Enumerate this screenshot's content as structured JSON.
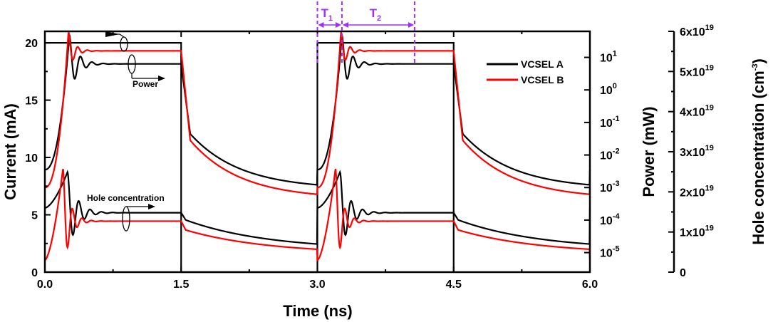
{
  "chart_data": {
    "type": "line",
    "x_axis": {
      "label": "Time (ns)",
      "range": [
        0,
        6
      ],
      "ticks": [
        "0.0",
        "1.5",
        "3.0",
        "4.5",
        "6.0"
      ]
    },
    "left_axis": {
      "label": "Current (mA)",
      "range": [
        0,
        21
      ],
      "ticks": [
        "0",
        "5",
        "10",
        "15",
        "20"
      ]
    },
    "right_axis_power": {
      "label": "Power (mW)",
      "scale": "log",
      "range_log10": [
        -5.6,
        1.8
      ],
      "ticks": [
        {
          "base": "10",
          "exp": "1"
        },
        {
          "base": "10",
          "exp": "0"
        },
        {
          "base": "10",
          "exp": "-1"
        },
        {
          "base": "10",
          "exp": "-2"
        },
        {
          "base": "10",
          "exp": "-3"
        },
        {
          "base": "10",
          "exp": "-4"
        },
        {
          "base": "10",
          "exp": "-5"
        }
      ]
    },
    "right_axis_hole": {
      "label_main": "Hole concentration (cm",
      "label_exp": "-3",
      "label_close": ")",
      "range": [
        0,
        6e+19
      ],
      "ticks": [
        {
          "mant": "6x10",
          "exp": "19"
        },
        {
          "mant": "5x10",
          "exp": "19"
        },
        {
          "mant": "4x10",
          "exp": "19"
        },
        {
          "mant": "3x10",
          "exp": "19"
        },
        {
          "mant": "2x10",
          "exp": "19"
        },
        {
          "mant": "1x10",
          "exp": "19"
        },
        {
          "mant": "0",
          "exp": ""
        }
      ]
    },
    "current_pulse": {
      "low_mA": 0,
      "high_mA": 20,
      "on_intervals_ns": [
        [
          0,
          1.5
        ],
        [
          3.0,
          4.5
        ]
      ]
    },
    "legend": {
      "position": "top-right",
      "entries": [
        {
          "name": "VCSEL A",
          "color": "#000000"
        },
        {
          "name": "VCSEL B",
          "color": "#ff0000"
        }
      ]
    },
    "series_params": [
      {
        "name": "VCSEL A",
        "color": "#000000",
        "power_log10": {
          "start": -2.45,
          "delay_ns": 0.27,
          "peak": 1.7,
          "ss": 0.8,
          "tau_ns": 0.09,
          "period_ns": 0.125,
          "floor": -3.05,
          "off_start": -1.35
        },
        "hole_cm3": {
          "start": 1.6e+19,
          "delay_ns": 0.25,
          "peak": 2.5e+19,
          "ss": 1.48e+19,
          "off_start": 1.3e+19,
          "floor": 5.5e+18
        }
      },
      {
        "name": "VCSEL B",
        "color": "#ff0000",
        "power_log10": {
          "start": -3.0,
          "delay_ns": 0.26,
          "peak": 1.8,
          "ss": 1.2,
          "tau_ns": 0.065,
          "period_ns": 0.105,
          "floor": -3.35,
          "off_start": -1.55
        },
        "hole_cm3": {
          "start": 3e+18,
          "delay_ns": 0.2,
          "peak": 2.6e+19,
          "ss": 1.27e+19,
          "off_start": 1.05e+19,
          "floor": 4.5e+18
        }
      }
    ],
    "annotations": {
      "power": "Power",
      "hole": "Hole concentration",
      "t1": {
        "text": "T",
        "sub": "1",
        "start_ns": 3.0,
        "end_ns": 3.27
      },
      "t2": {
        "text": "T",
        "sub": "2",
        "start_ns": 3.27,
        "end_ns": 4.07
      },
      "marker_color": "#9b30ff"
    }
  }
}
